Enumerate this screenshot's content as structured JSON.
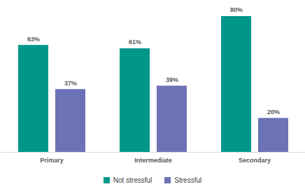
{
  "chart_data": {
    "type": "bar",
    "categories": [
      "Primary",
      "Intermediate",
      "Secondary"
    ],
    "series": [
      {
        "name": "Not stressful",
        "color": "#00968a",
        "values": [
          63,
          61,
          80
        ],
        "value_labels": [
          "63%",
          "61%",
          "80%"
        ]
      },
      {
        "name": "Stressful",
        "color": "#6b72b5",
        "values": [
          37,
          39,
          20
        ],
        "value_labels": [
          "37%",
          "39%",
          "20%"
        ]
      }
    ],
    "ylim": [
      0,
      80
    ],
    "yticks": [],
    "data_labels": true,
    "tick_labels": "x",
    "legend": "bottom",
    "grid": false
  }
}
